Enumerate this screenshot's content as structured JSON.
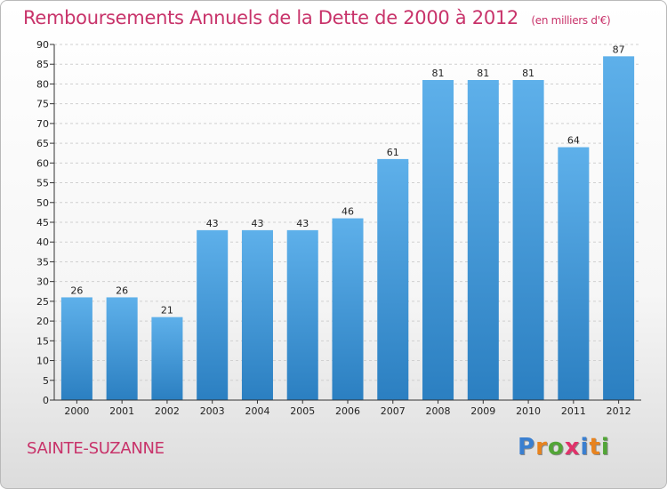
{
  "header": {
    "title": "Remboursements Annuels de la Dette de 2000 à 2012",
    "subtitle": "(en milliers d'€)"
  },
  "footer": {
    "commune": "SAINTE-SUZANNE",
    "logo_letters": [
      "P",
      "r",
      "o",
      "x",
      "i",
      "t",
      "i"
    ]
  },
  "colors": {
    "title": "#c8336a",
    "bar_top": "#5eb0ea",
    "bar_bottom": "#2b7fc1",
    "grid": "#d0d0d0",
    "logo": [
      "#3a7fd0",
      "#e8831e",
      "#52a537",
      "#e0326a",
      "#3a7fd0",
      "#e8831e",
      "#52a537"
    ]
  },
  "chart_data": {
    "type": "bar",
    "categories": [
      "2000",
      "2001",
      "2002",
      "2003",
      "2004",
      "2005",
      "2006",
      "2007",
      "2008",
      "2009",
      "2010",
      "2011",
      "2012"
    ],
    "values": [
      26,
      26,
      21,
      43,
      43,
      43,
      46,
      61,
      81,
      81,
      81,
      64,
      87
    ],
    "title": "Remboursements Annuels de la Dette de 2000 à 2012",
    "xlabel": "",
    "ylabel": "",
    "ylim": [
      0,
      90
    ],
    "yticks": [
      0,
      5,
      10,
      15,
      20,
      25,
      30,
      35,
      40,
      45,
      50,
      55,
      60,
      65,
      70,
      75,
      80,
      85,
      90
    ],
    "grid": true,
    "legend": "none"
  }
}
